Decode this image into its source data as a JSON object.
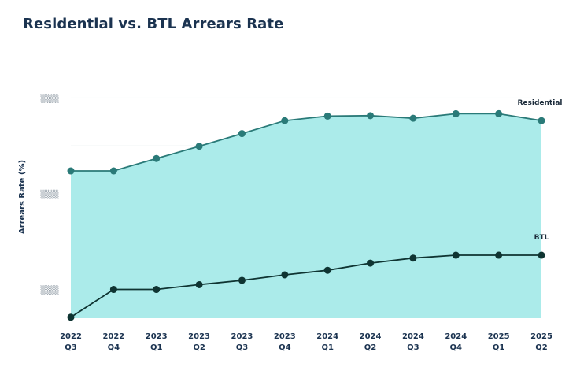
{
  "chart_data": {
    "type": "area",
    "title": "Residential vs. BTL Arrears Rate",
    "xlabel": "",
    "ylabel": "Arrears Rate (%)",
    "y_tick_labels": [
      "▒▒▒",
      "▒▒▒",
      "▒▒▒"
    ],
    "y_tick_values": [
      80,
      40,
      0
    ],
    "ylim": [
      -12,
      88
    ],
    "grid": true,
    "categories": [
      [
        "2022",
        "Q3"
      ],
      [
        "2022",
        "Q4"
      ],
      [
        "2023",
        "Q1"
      ],
      [
        "2023",
        "Q2"
      ],
      [
        "2023",
        "Q3"
      ],
      [
        "2023",
        "Q4"
      ],
      [
        "2024",
        "Q1"
      ],
      [
        "2024",
        "Q2"
      ],
      [
        "2024",
        "Q3"
      ],
      [
        "2024",
        "Q4"
      ],
      [
        "2025",
        "Q1"
      ],
      [
        "2025",
        "Q2"
      ]
    ],
    "series": [
      {
        "name": "Residential",
        "color": "#2a7a78",
        "fill": "#abebea",
        "values": [
          49.5,
          49.5,
          54.7,
          59.8,
          65.1,
          70.5,
          72.4,
          72.6,
          71.5,
          73.4,
          73.4,
          70.5
        ]
      },
      {
        "name": "BTL",
        "color": "#0f3432",
        "fill": "none",
        "values": [
          -11.6,
          0.0,
          0.0,
          2.0,
          3.8,
          6.1,
          8.0,
          11.0,
          13.1,
          14.3,
          14.3,
          14.3
        ]
      }
    ]
  }
}
